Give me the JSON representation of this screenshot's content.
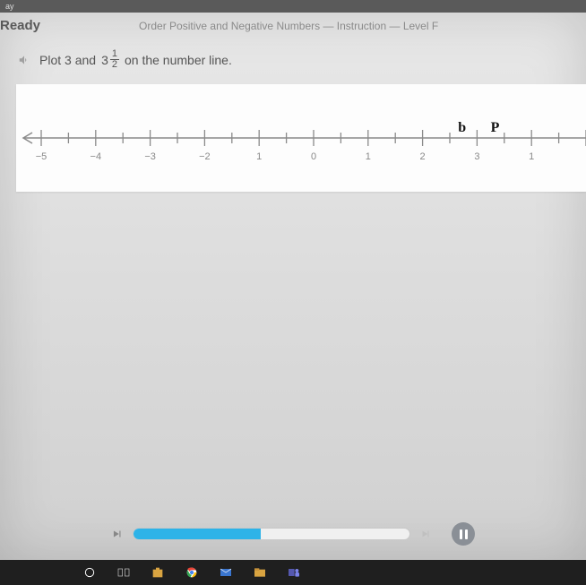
{
  "topstrip": {
    "text": "ay"
  },
  "header": {
    "brand": "Ready",
    "lesson": "Order Positive and Negative Numbers — Instruction — Level F"
  },
  "question": {
    "prefix": "Plot 3 and",
    "fraction": {
      "whole": "3",
      "num": "1",
      "den": "2"
    },
    "suffix": "on the number line."
  },
  "numberline": {
    "min": -5,
    "max": 5,
    "labels": [
      "−5",
      "−4",
      "−3",
      "−2",
      "1",
      "0",
      "1",
      "2",
      "3",
      "1",
      ""
    ],
    "axis_color": "#8a8a8a",
    "panel_bg": "#fdfdfd",
    "marks": [
      {
        "glyph": "b",
        "x_value": 2.75
      },
      {
        "glyph": "P",
        "x_value": 3.35
      }
    ]
  },
  "player": {
    "progress_percent": 46,
    "fill_color": "#2db3e8",
    "track_bg": "#f0f0f0"
  },
  "taskbar": {
    "items": [
      "circle",
      "task-view",
      "store",
      "chrome",
      "mail",
      "files",
      "teams"
    ]
  },
  "colors": {
    "screen_bg_top": "#e8e8e8",
    "screen_bg_bottom": "#d0d0d0",
    "text_muted": "#8a8a8a",
    "text_body": "#555555"
  }
}
